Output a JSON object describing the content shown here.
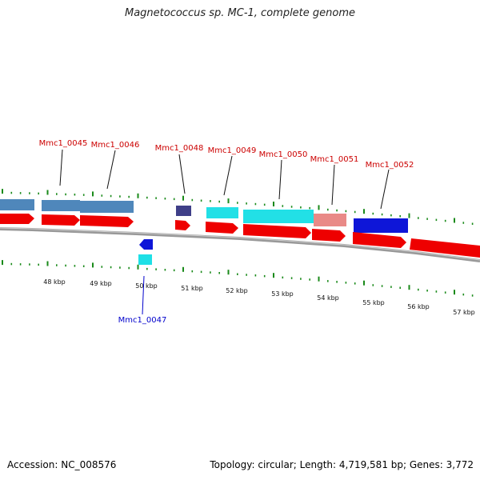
{
  "title": "Magnetococcus sp. MC-1, complete genome",
  "footer": {
    "accession": "Accession: NC_008576",
    "summary": "Topology: circular; Length: 4,719,581 bp; Genes: 3,772"
  },
  "colors": {
    "backbone": "#888888",
    "strand": "#ee0000",
    "tick": "#1a8a1a",
    "label_top": "#cc0000",
    "label_bottom": "#0000cc"
  },
  "kbp_labels": [
    "48 kbp",
    "49 kbp",
    "50 kbp",
    "51 kbp",
    "52 kbp",
    "53 kbp",
    "54 kbp",
    "55 kbp",
    "56 kbp",
    "57 kbp"
  ],
  "gene_labels_top": [
    "Mmc1_0045",
    "Mmc1_0046",
    "Mmc1_0048",
    "Mmc1_0049",
    "Mmc1_0050",
    "Mmc1_0051",
    "Mmc1_0052"
  ],
  "gene_labels_bottom": [
    "Mmc1_0047"
  ]
}
